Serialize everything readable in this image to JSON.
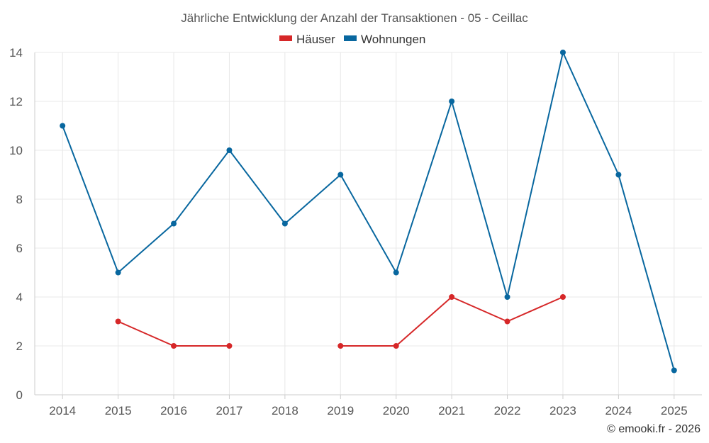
{
  "chart_data": {
    "type": "line",
    "title": "Jährliche Entwicklung der Anzahl der Transaktionen - 05 - Ceillac",
    "xlabel": "",
    "ylabel": "",
    "x": [
      "2014",
      "2015",
      "2016",
      "2017",
      "2018",
      "2019",
      "2020",
      "2021",
      "2022",
      "2023",
      "2024",
      "2025"
    ],
    "ylim": [
      0,
      14
    ],
    "yticks": [
      0,
      2,
      4,
      6,
      8,
      10,
      12,
      14
    ],
    "grid": true,
    "legend_position": "top-center",
    "series": [
      {
        "name": "Häuser",
        "color": "#d62728",
        "values": [
          null,
          3,
          2,
          2,
          null,
          2,
          2,
          4,
          3,
          4,
          null,
          null
        ]
      },
      {
        "name": "Wohnungen",
        "color": "#08679f",
        "values": [
          11,
          5,
          7,
          10,
          7,
          9,
          5,
          12,
          4,
          14,
          9,
          1
        ]
      }
    ]
  },
  "credit": "© emooki.fr - 2026"
}
